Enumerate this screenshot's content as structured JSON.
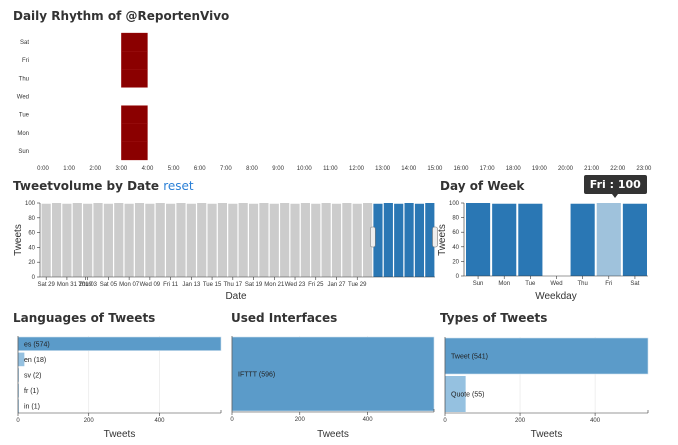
{
  "colors": {
    "heat": "#8b0000",
    "selected": "#2a77b4",
    "unselected": "#cccccc",
    "hover": "#9fc2dc",
    "row_dark": "#5b9bc9",
    "row_light": "#95c1e0",
    "reset_link": "#2a7fd6"
  },
  "chart_data": [
    {
      "id": "daily-rhythm",
      "type": "heatmap",
      "title": "Daily Rhythm of @ReportenVivo",
      "x_categories": [
        "0:00",
        "1:00",
        "2:00",
        "3:00",
        "4:00",
        "5:00",
        "6:00",
        "7:00",
        "8:00",
        "9:00",
        "10:00",
        "11:00",
        "12:00",
        "13:00",
        "14:00",
        "15:00",
        "16:00",
        "17:00",
        "18:00",
        "19:00",
        "20:00",
        "21:00",
        "22:00",
        "23:00"
      ],
      "y_categories": [
        "Sun",
        "Mon",
        "Tue",
        "Wed",
        "Thu",
        "Fri",
        "Sat"
      ],
      "cells": [
        {
          "hour": "3:00",
          "day": "Sun",
          "value": 100
        },
        {
          "hour": "3:00",
          "day": "Mon",
          "value": 100
        },
        {
          "hour": "3:00",
          "day": "Tue",
          "value": 100
        },
        {
          "hour": "3:00",
          "day": "Thu",
          "value": 100
        },
        {
          "hour": "3:00",
          "day": "Fri",
          "value": 100
        },
        {
          "hour": "3:00",
          "day": "Sat",
          "value": 100
        }
      ]
    },
    {
      "id": "tweetvolume-by-date",
      "type": "bar",
      "title": "Tweetvolume by Date",
      "reset_label": "reset",
      "xlabel": "Date",
      "ylabel": "Tweets",
      "ylim": [
        0,
        100
      ],
      "yticks": [
        0,
        20,
        40,
        60,
        80,
        100
      ],
      "xtick_labels": [
        "Sat 29",
        "Mon 31",
        "2019",
        "Thu 03",
        "Sat 05",
        "Mon 07",
        "Wed 09",
        "Fri 11",
        "Jan 13",
        "Tue 15",
        "Thu 17",
        "Sat 19",
        "Mon 21",
        "Wed 23",
        "Fri 25",
        "Jan 27",
        "Tue 29"
      ],
      "values": [
        99,
        100,
        99,
        100,
        99,
        100,
        99,
        100,
        99,
        100,
        99,
        100,
        99,
        100,
        99,
        100,
        99,
        100,
        99,
        100,
        99,
        100,
        99,
        100,
        99,
        100,
        99,
        100,
        99,
        100,
        99,
        100,
        99,
        100,
        99,
        100,
        99,
        100
      ],
      "brush_selection": {
        "from_index": 32,
        "to_index": 37
      }
    },
    {
      "id": "day-of-week",
      "type": "bar",
      "title": "Day of Week",
      "xlabel": "Weekday",
      "ylabel": "Tweets",
      "ylim": [
        0,
        100
      ],
      "yticks": [
        0,
        20,
        40,
        60,
        80,
        100
      ],
      "categories": [
        "Sun",
        "Mon",
        "Tue",
        "Wed",
        "Thu",
        "Fri",
        "Sat"
      ],
      "values": [
        100,
        99,
        99,
        0,
        99,
        100,
        99
      ],
      "highlighted": "Fri",
      "tooltip": "Fri : 100"
    },
    {
      "id": "languages",
      "type": "bar",
      "orientation": "horizontal",
      "title": "Languages of Tweets",
      "xlabel": "Tweets",
      "xlim": [
        0,
        574
      ],
      "xticks": [
        0,
        200,
        400
      ],
      "categories": [
        "es",
        "en",
        "sv",
        "fr",
        "in"
      ],
      "values": [
        574,
        18,
        2,
        1,
        1
      ],
      "labels": [
        "es (574)",
        "en (18)",
        "sv (2)",
        "fr (1)",
        "in (1)"
      ]
    },
    {
      "id": "interfaces",
      "type": "bar",
      "orientation": "horizontal",
      "title": "Used Interfaces",
      "xlabel": "Tweets",
      "xlim": [
        0,
        596
      ],
      "xticks": [
        0,
        200,
        400
      ],
      "categories": [
        "IFTTT"
      ],
      "values": [
        596
      ],
      "labels": [
        "IFTTT (596)"
      ]
    },
    {
      "id": "types",
      "type": "bar",
      "orientation": "horizontal",
      "title": "Types of Tweets",
      "xlabel": "Tweets",
      "xlim": [
        0,
        541
      ],
      "xticks": [
        0,
        200,
        400
      ],
      "categories": [
        "Tweet",
        "Quote"
      ],
      "values": [
        541,
        55
      ],
      "labels": [
        "Tweet (541)",
        "Quote (55)"
      ]
    }
  ]
}
